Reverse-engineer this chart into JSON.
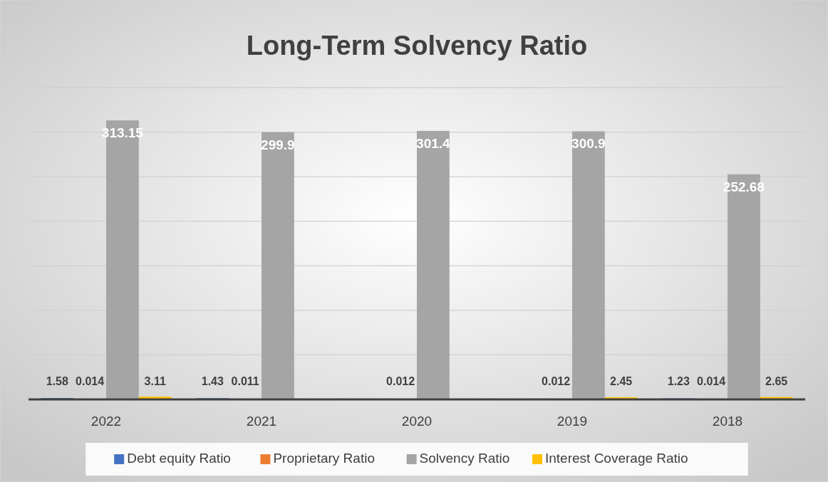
{
  "chart_data": {
    "type": "bar",
    "title": "Long-Term Solvency Ratio",
    "categories": [
      "2022",
      "2021",
      "2020",
      "2019",
      "2018"
    ],
    "series": [
      {
        "name": "Debt equity Ratio",
        "color": "#4472c4",
        "values": [
          1.58,
          1.43,
          null,
          null,
          1.23
        ],
        "value_labels": [
          "1.58",
          "1.43",
          null,
          null,
          "1.23"
        ]
      },
      {
        "name": "Proprietary Ratio",
        "color": "#ed7d31",
        "values": [
          0.014,
          0.011,
          0.012,
          0.012,
          0.014
        ],
        "value_labels": [
          "0.014",
          "0.011",
          "0.012",
          "0.012",
          "0.014"
        ]
      },
      {
        "name": "Solvency Ratio",
        "color": "#a5a5a5",
        "values": [
          313.15,
          299.9,
          301.4,
          300.9,
          252.68
        ],
        "value_labels": [
          "313.15",
          "299.9",
          "301.4",
          "300.9",
          "252.68"
        ]
      },
      {
        "name": "Interest Coverage Ratio",
        "color": "#ffc000",
        "values": [
          3.11,
          null,
          null,
          2.45,
          2.65
        ],
        "value_labels": [
          "3.11",
          null,
          null,
          "2.45",
          "2.65"
        ]
      }
    ],
    "ylim": [
      0,
      350
    ],
    "yticks": [
      {
        "value": 0,
        "label": null
      },
      {
        "value": 50,
        "label": null
      },
      {
        "value": 100,
        "label": null
      },
      {
        "value": 150,
        "label": null
      },
      {
        "value": 200,
        "label": null
      },
      {
        "value": 250,
        "label": null
      },
      {
        "value": 300,
        "label": null
      },
      {
        "value": 350,
        "label": null
      }
    ],
    "tick_labels": "x",
    "grid": "y",
    "legend": "bottom"
  }
}
